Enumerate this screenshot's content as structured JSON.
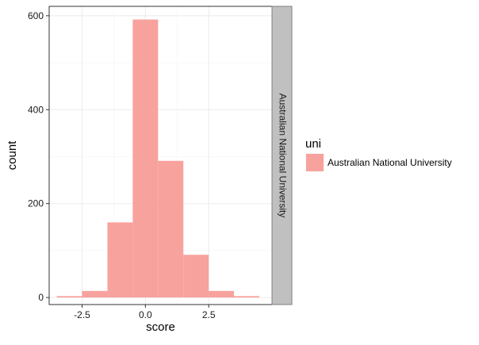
{
  "chart_data": {
    "type": "bar",
    "subtype": "histogram",
    "xlabel": "score",
    "ylabel": "count",
    "xlim": [
      -3.8,
      5.0
    ],
    "ylim": [
      -15,
      620
    ],
    "x_ticks": [
      {
        "value": -2.5,
        "label": "-2.5"
      },
      {
        "value": 0,
        "label": "0.0"
      },
      {
        "value": 2.5,
        "label": "2.5"
      }
    ],
    "y_ticks": [
      {
        "value": 0,
        "label": "0"
      },
      {
        "value": 200,
        "label": "200"
      },
      {
        "value": 400,
        "label": "400"
      },
      {
        "value": 600,
        "label": "600"
      }
    ],
    "bin_width": 1,
    "series": [
      {
        "name": "Australian National University",
        "color": "#f8a29e",
        "bins": [
          {
            "x0": -3.5,
            "x1": -2.5,
            "count": 3
          },
          {
            "x0": -2.5,
            "x1": -1.5,
            "count": 14
          },
          {
            "x0": -1.5,
            "x1": -0.5,
            "count": 160
          },
          {
            "x0": -0.5,
            "x1": 0.5,
            "count": 592
          },
          {
            "x0": 0.5,
            "x1": 1.5,
            "count": 291
          },
          {
            "x0": 1.5,
            "x1": 2.5,
            "count": 91
          },
          {
            "x0": 2.5,
            "x1": 3.5,
            "count": 14
          },
          {
            "x0": 3.5,
            "x1": 4.5,
            "count": 3
          }
        ]
      }
    ],
    "facet_label": "Australian National University",
    "legend": {
      "title": "uni",
      "position": "right",
      "items": [
        {
          "label": "Australian National University",
          "color": "#f8a29e"
        }
      ]
    },
    "grid": true,
    "colors": {
      "panel_border": "#333333",
      "grid_major": "#ebebeb",
      "grid_minor": "#f4f4f4",
      "strip_fill": "#c0c0c0",
      "strip_border": "#7f7f7f"
    }
  }
}
